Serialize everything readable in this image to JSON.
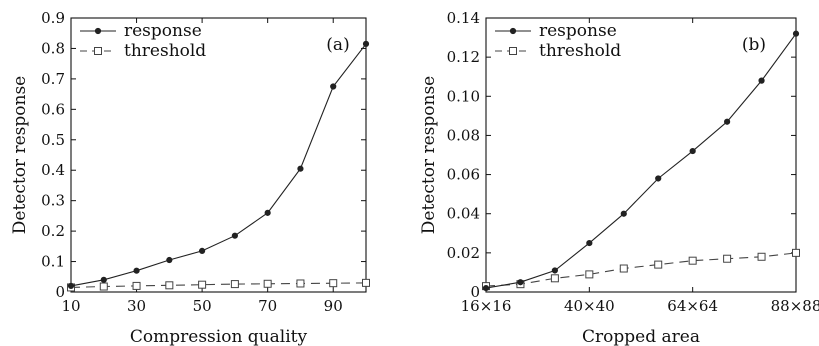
{
  "chart_data": [
    {
      "type": "line",
      "panel_label": "(a)",
      "xlabel": "Compression quality",
      "ylabel": "Detector response",
      "xlim": [
        10,
        100
      ],
      "ylim": [
        0,
        0.9
      ],
      "xticks": [
        10,
        30,
        50,
        70,
        90
      ],
      "xtick_labels": [
        "10",
        "30",
        "50",
        "70",
        "90"
      ],
      "yticks": [
        0,
        0.1,
        0.2,
        0.3,
        0.4,
        0.5,
        0.6,
        0.7,
        0.8,
        0.9
      ],
      "ytick_labels": [
        "0",
        "0.1",
        "0.2",
        "0.3",
        "0.4",
        "0.5",
        "0.6",
        "0.7",
        "0.8",
        "0.9"
      ],
      "legend_position": "top-left",
      "grid": false,
      "series": [
        {
          "name": "response",
          "marker": "filled-circle",
          "line": "solid",
          "color": "#222222",
          "x": [
            10,
            20,
            30,
            40,
            50,
            60,
            70,
            80,
            90,
            100
          ],
          "y": [
            0.02,
            0.04,
            0.07,
            0.105,
            0.135,
            0.185,
            0.26,
            0.405,
            0.675,
            0.815
          ]
        },
        {
          "name": "threshold",
          "marker": "open-square",
          "line": "dashed",
          "color": "#444444",
          "x": [
            10,
            20,
            30,
            40,
            50,
            60,
            70,
            80,
            90,
            100
          ],
          "y": [
            0.015,
            0.018,
            0.02,
            0.022,
            0.024,
            0.026,
            0.027,
            0.028,
            0.029,
            0.03
          ]
        }
      ]
    },
    {
      "type": "line",
      "panel_label": "(b)",
      "xlabel": "Cropped area",
      "ylabel": "Detector response",
      "xlim": [
        16,
        88
      ],
      "ylim": [
        0,
        0.14
      ],
      "xticks": [
        16,
        40,
        64,
        88
      ],
      "xtick_labels": [
        "16×16",
        "40×40",
        "64×64",
        "88×88"
      ],
      "yticks": [
        0,
        0.02,
        0.04,
        0.06,
        0.08,
        0.1,
        0.12,
        0.14
      ],
      "ytick_labels": [
        "0",
        "0.02",
        "0.04",
        "0.06",
        "0.08",
        "0.10",
        "0.12",
        "0.14"
      ],
      "legend_position": "top-left",
      "grid": false,
      "series": [
        {
          "name": "response",
          "marker": "filled-circle",
          "line": "solid",
          "color": "#222222",
          "x": [
            16,
            24,
            32,
            40,
            48,
            56,
            64,
            72,
            80,
            88
          ],
          "y": [
            0.002,
            0.005,
            0.011,
            0.025,
            0.04,
            0.058,
            0.072,
            0.087,
            0.108,
            0.132
          ]
        },
        {
          "name": "threshold",
          "marker": "open-square",
          "line": "dashed",
          "color": "#444444",
          "x": [
            16,
            24,
            32,
            40,
            48,
            56,
            64,
            72,
            80,
            88
          ],
          "y": [
            0.003,
            0.004,
            0.007,
            0.009,
            0.012,
            0.014,
            0.016,
            0.017,
            0.018,
            0.02
          ]
        }
      ]
    }
  ]
}
